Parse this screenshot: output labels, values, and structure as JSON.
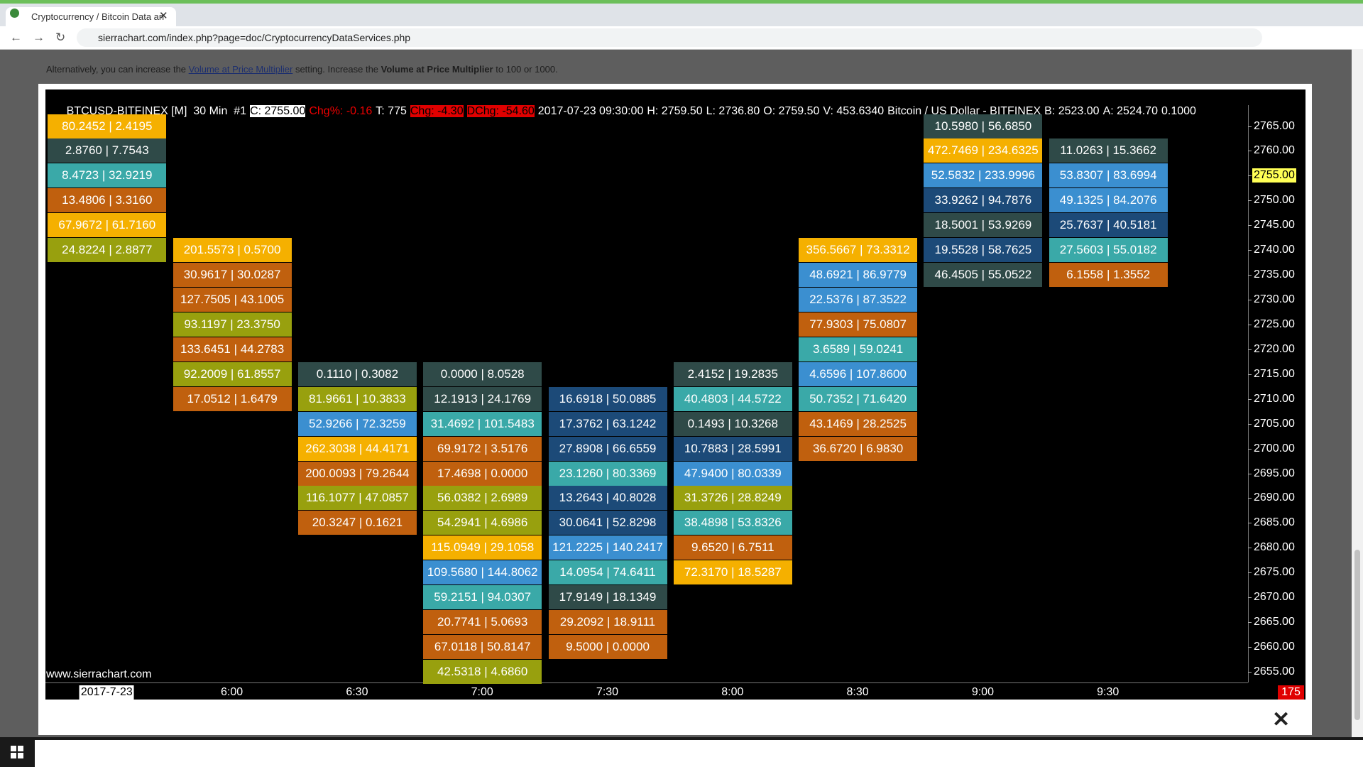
{
  "browser": {
    "tab_title": "Cryptocurrency / Bitcoin Data an",
    "url": "sierrachart.com/index.php?page=doc/CryptocurrencyDataServices.php"
  },
  "page_text": {
    "intro": "Alternatively, you can increase the",
    "link": "Volume at Price Multiplier",
    "mid": "setting. Increase the",
    "bold": "Volume at Price Multiplier",
    "end": "to 100 or 1000."
  },
  "chart": {
    "header": [
      "BTCUSD-BITFINEX [M]  30 Min  #1",
      "C: 2755.00",
      "Chg%: -0.16",
      "T: 775",
      "Chg: -4.30",
      "DChg: -54.60",
      "2017-07-23 09:30:00",
      "H: 2759.50",
      "L: 2736.80",
      "O: 2759.50",
      "V: 453.6340",
      "Bitcoin / US Dollar - BITFINEX",
      "B: 2523.00",
      "A: 2524.70",
      "0.1000"
    ],
    "price_labels": [
      "2765.00",
      "2760.00",
      "2755.00",
      "2750.00",
      "2745.00",
      "2740.00",
      "2735.00",
      "2730.00",
      "2725.00",
      "2720.00",
      "2715.00",
      "2710.00",
      "2705.00",
      "2700.00",
      "2695.00",
      "2690.00",
      "2685.00",
      "2680.00",
      "2675.00",
      "2670.00",
      "2665.00",
      "2660.00",
      "2655.00"
    ],
    "watermark": "www.sierrachart.com",
    "bar_count": "175",
    "columns": [
      {
        "time": "2017-7-23",
        "cells": [
          {
            "text": "80.2452 | 2.4195",
            "color": "#f5b000"
          },
          {
            "text": "2.8760 | 7.7543",
            "color": "#2f4a48"
          },
          {
            "text": "8.4723 | 32.9219",
            "color": "#3aa9a8"
          },
          {
            "text": "13.4806 | 3.3160",
            "color": "#c0600e"
          },
          {
            "text": "67.9672 | 61.7160",
            "color": "#f5b000"
          },
          {
            "text": "24.8224 | 2.8877",
            "color": "#98a00e"
          }
        ]
      },
      {
        "time": "6:00",
        "cells": [
          {
            "text": "201.5573 | 0.5700",
            "color": "#f5b000"
          },
          {
            "text": "30.9617 | 30.0287",
            "color": "#c0600e"
          },
          {
            "text": "127.7505 | 43.1005",
            "color": "#c0600e"
          },
          {
            "text": "93.1197 | 23.3750",
            "color": "#98a00e"
          },
          {
            "text": "133.6451 | 44.2783",
            "color": "#c0600e"
          },
          {
            "text": "92.2009 | 61.8557",
            "color": "#98a00e"
          },
          {
            "text": "17.0512 | 1.6479",
            "color": "#c0600e"
          }
        ]
      },
      {
        "time": "6:30",
        "cells": [
          {
            "text": "0.1110 | 0.3082",
            "color": "#2f4a48"
          },
          {
            "text": "81.9661 | 10.3833",
            "color": "#98a00e"
          },
          {
            "text": "52.9266 | 72.3259",
            "color": "#3b8fd0"
          },
          {
            "text": "262.3038 | 44.4171",
            "color": "#f5b000"
          },
          {
            "text": "200.0093 | 79.2644",
            "color": "#c0600e"
          },
          {
            "text": "116.1077 | 47.0857",
            "color": "#98a00e"
          },
          {
            "text": "20.3247 | 0.1621",
            "color": "#c0600e"
          }
        ]
      },
      {
        "time": "7:00",
        "cells": [
          {
            "text": "0.0000 | 8.0528",
            "color": "#2f4a48"
          },
          {
            "text": "12.1913 | 24.1769",
            "color": "#2f4a48"
          },
          {
            "text": "31.4692 | 101.5483",
            "color": "#3aa9a8"
          },
          {
            "text": "69.9172 | 3.5176",
            "color": "#c0600e"
          },
          {
            "text": "17.4698 | 0.0000",
            "color": "#c0600e"
          },
          {
            "text": "56.0382 | 2.6989",
            "color": "#98a00e"
          },
          {
            "text": "54.2941 | 4.6986",
            "color": "#98a00e"
          },
          {
            "text": "115.0949 | 29.1058",
            "color": "#f5b000"
          },
          {
            "text": "109.5680 | 144.8062",
            "color": "#3b8fd0"
          },
          {
            "text": "59.2151 | 94.0307",
            "color": "#3aa9a8"
          },
          {
            "text": "20.7741 | 5.0693",
            "color": "#c0600e"
          },
          {
            "text": "67.0118 | 50.8147",
            "color": "#c0600e"
          },
          {
            "text": "42.5318 | 4.6860",
            "color": "#98a00e"
          }
        ]
      },
      {
        "time": "7:30",
        "cells": [
          {
            "text": "16.6918 | 50.0885",
            "color": "#1c4a78"
          },
          {
            "text": "17.3762 | 63.1242",
            "color": "#1c4a78"
          },
          {
            "text": "27.8908 | 66.6559",
            "color": "#1c4a78"
          },
          {
            "text": "23.1260 | 80.3369",
            "color": "#3aa9a8"
          },
          {
            "text": "13.2643 | 40.8028",
            "color": "#1c4a78"
          },
          {
            "text": "30.0641 | 52.8298",
            "color": "#1c4a78"
          },
          {
            "text": "121.2225 | 140.2417",
            "color": "#3b8fd0"
          },
          {
            "text": "14.0954 | 74.6411",
            "color": "#3aa9a8"
          },
          {
            "text": "17.9149 | 18.1349",
            "color": "#2f4a48"
          },
          {
            "text": "29.2092 | 18.9111",
            "color": "#c0600e"
          },
          {
            "text": "9.5000 | 0.0000",
            "color": "#c0600e"
          }
        ]
      },
      {
        "time": "8:00",
        "cells": [
          {
            "text": "2.4152 | 19.2835",
            "color": "#2f4a48"
          },
          {
            "text": "40.4803 | 44.5722",
            "color": "#3aa9a8"
          },
          {
            "text": "0.1493 | 10.3268",
            "color": "#2f4a48"
          },
          {
            "text": "10.7883 | 28.5991",
            "color": "#1c4a78"
          },
          {
            "text": "47.9400 | 80.0339",
            "color": "#3b8fd0"
          },
          {
            "text": "31.3726 | 28.8249",
            "color": "#98a00e"
          },
          {
            "text": "38.4898 | 53.8326",
            "color": "#3aa9a8"
          },
          {
            "text": "9.6520 | 6.7511",
            "color": "#c0600e"
          },
          {
            "text": "72.3170 | 18.5287",
            "color": "#f5b000"
          }
        ]
      },
      {
        "time": "8:30",
        "cells": [
          {
            "text": "356.5667 | 73.3312",
            "color": "#f5b000"
          },
          {
            "text": "48.6921 | 86.9779",
            "color": "#3b8fd0"
          },
          {
            "text": "22.5376 | 87.3522",
            "color": "#3b8fd0"
          },
          {
            "text": "77.9303 | 75.0807",
            "color": "#c0600e"
          },
          {
            "text": "3.6589 | 59.0241",
            "color": "#3aa9a8"
          },
          {
            "text": "4.6596 | 107.8600",
            "color": "#3b8fd0"
          },
          {
            "text": "50.7352 | 71.6420",
            "color": "#3aa9a8"
          },
          {
            "text": "43.1469 | 28.2525",
            "color": "#c0600e"
          },
          {
            "text": "36.6720 | 6.9830",
            "color": "#c0600e"
          }
        ]
      },
      {
        "time": "9:00",
        "cells": [
          {
            "text": "10.5980 | 56.6850",
            "color": "#2f4a48"
          },
          {
            "text": "472.7469 | 234.6325",
            "color": "#f5b000"
          },
          {
            "text": "52.5832 | 233.9996",
            "color": "#3b8fd0"
          },
          {
            "text": "33.9262 | 94.7876",
            "color": "#1c4a78"
          },
          {
            "text": "18.5001 | 53.9269",
            "color": "#2f4a48"
          },
          {
            "text": "19.5528 | 58.7625",
            "color": "#1c4a78"
          },
          {
            "text": "46.4505 | 55.0522",
            "color": "#2f4a48"
          }
        ]
      },
      {
        "time": "9:30",
        "cells": [
          {
            "text": "11.0263 | 15.3662",
            "color": "#2f4a48"
          },
          {
            "text": "53.8307 | 83.6994",
            "color": "#3b8fd0"
          },
          {
            "text": "49.1325 | 84.2076",
            "color": "#3b8fd0"
          },
          {
            "text": "25.7637 | 40.5181",
            "color": "#1c4a78"
          },
          {
            "text": "27.5603 | 55.0182",
            "color": "#3aa9a8"
          },
          {
            "text": "6.1558 | 1.3552",
            "color": "#c0600e"
          }
        ]
      }
    ]
  }
}
